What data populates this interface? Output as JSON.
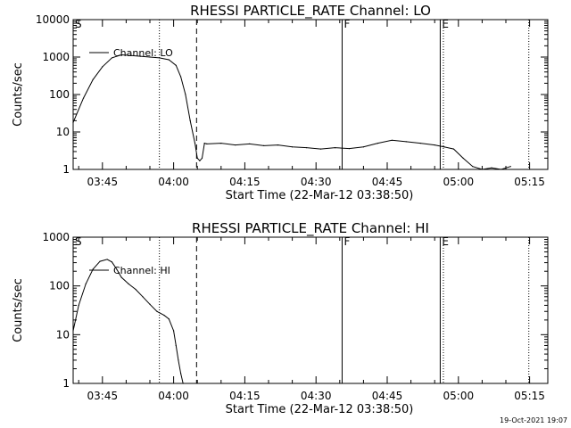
{
  "chart_data": [
    {
      "type": "line",
      "title": "RHESSI PARTICLE_RATE Channel: LO",
      "xlabel": "Start Time (22-Mar-12 03:38:50)",
      "ylabel": "Counts/sec",
      "yscale": "log",
      "ylim": [
        1,
        10000
      ],
      "xlim": [
        "03:38:50",
        "05:18:50"
      ],
      "x_ticks": [
        "03:45",
        "04:00",
        "04:15",
        "04:30",
        "04:45",
        "05:00",
        "05:15"
      ],
      "y_ticks": [
        "1",
        "10",
        "100",
        "1000",
        "10000"
      ],
      "legend": "top-left",
      "series": [
        {
          "name": "Channel: LO",
          "x": [
            "03:38:50",
            "03:41:00",
            "03:43:00",
            "03:45:00",
            "03:47:00",
            "03:49:00",
            "03:51:00",
            "03:53:00",
            "03:55:00",
            "03:57:00",
            "03:59:00",
            "04:00:30",
            "04:01:30",
            "04:02:30",
            "04:03:30",
            "04:04:30",
            "04:05:00",
            "04:05:30",
            "04:06:00",
            "04:06:30",
            "04:07:00",
            "04:10:00",
            "04:13:00",
            "04:16:00",
            "04:19:00",
            "04:22:00",
            "04:25:00",
            "04:28:00",
            "04:31:00",
            "04:34:00",
            "04:37:00",
            "04:40:00",
            "04:43:00",
            "04:46:00",
            "04:49:00",
            "04:52:00",
            "04:55:00",
            "04:57:00",
            "04:59:00",
            "05:01:00",
            "05:03:00",
            "05:05:00",
            "05:07:00",
            "05:09:00",
            "05:11:00"
          ],
          "values": [
            18,
            80,
            250,
            550,
            950,
            1150,
            1100,
            1050,
            1000,
            950,
            850,
            600,
            300,
            100,
            20,
            5,
            2,
            1.7,
            2,
            5,
            4.8,
            5,
            4.5,
            4.8,
            4.3,
            4.5,
            4,
            3.8,
            3.5,
            3.8,
            3.6,
            4,
            5,
            6,
            5.5,
            5,
            4.5,
            4,
            3.5,
            2,
            1.2,
            1,
            1.1,
            1,
            1.2
          ]
        }
      ],
      "markers": [
        {
          "label": "S",
          "x": "03:38:50",
          "style": "solid"
        },
        {
          "label": "",
          "x": "03:57:00",
          "style": "dotted"
        },
        {
          "label": "",
          "x": "04:04:50",
          "style": "dashed"
        },
        {
          "label": "F",
          "x": "04:35:30",
          "style": "solid"
        },
        {
          "label": "E",
          "x": "04:56:10",
          "style": "solid"
        },
        {
          "label": "",
          "x": "04:56:50",
          "style": "dotted"
        },
        {
          "label": "",
          "x": "05:14:50",
          "style": "dotted"
        }
      ]
    },
    {
      "type": "line",
      "title": "RHESSI PARTICLE_RATE Channel: HI",
      "xlabel": "Start Time (22-Mar-12 03:38:50)",
      "ylabel": "Counts/sec",
      "yscale": "log",
      "ylim": [
        1,
        1000
      ],
      "xlim": [
        "03:38:50",
        "05:18:50"
      ],
      "x_ticks": [
        "03:45",
        "04:00",
        "04:15",
        "04:30",
        "04:45",
        "05:00",
        "05:15"
      ],
      "y_ticks": [
        "1",
        "10",
        "100",
        "1000"
      ],
      "legend": "top-left",
      "series": [
        {
          "name": "Channel: HI",
          "x": [
            "03:38:50",
            "03:40:00",
            "03:41:30",
            "03:43:00",
            "03:44:30",
            "03:46:00",
            "03:47:00",
            "03:48:00",
            "03:49:00",
            "03:50:30",
            "03:52:00",
            "03:53:30",
            "03:55:00",
            "03:56:30",
            "03:58:00",
            "03:59:00",
            "04:00:00",
            "04:00:30",
            "04:01:00",
            "04:01:30",
            "04:02:00"
          ],
          "values": [
            12,
            40,
            110,
            220,
            320,
            350,
            310,
            220,
            150,
            110,
            85,
            60,
            42,
            30,
            25,
            21,
            12,
            6,
            3,
            1.6,
            1
          ]
        }
      ],
      "markers": [
        {
          "label": "S",
          "x": "03:38:50",
          "style": "solid"
        },
        {
          "label": "",
          "x": "03:57:00",
          "style": "dotted"
        },
        {
          "label": "",
          "x": "04:04:50",
          "style": "dashed"
        },
        {
          "label": "F",
          "x": "04:35:30",
          "style": "solid"
        },
        {
          "label": "E",
          "x": "04:56:10",
          "style": "solid"
        },
        {
          "label": "",
          "x": "04:56:50",
          "style": "dotted"
        },
        {
          "label": "",
          "x": "05:14:50",
          "style": "dotted"
        }
      ]
    }
  ],
  "footer": {
    "timestamp": "19-Oct-2021 19:07"
  }
}
